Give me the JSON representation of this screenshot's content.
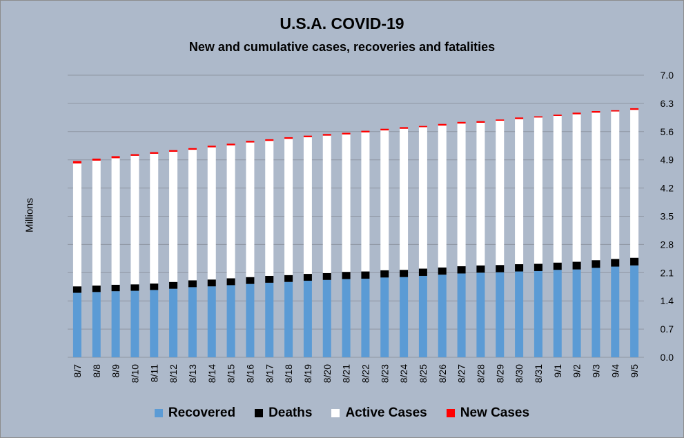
{
  "chart_data": {
    "type": "bar",
    "stacked": true,
    "title": "U.S.A. COVID-19",
    "subtitle": "New and cumulative cases, recoveries and fatalities",
    "ylabel": "Millions",
    "ylim": [
      0,
      7.0
    ],
    "yticks": [
      "0.0",
      "0.7",
      "1.4",
      "2.1",
      "2.8",
      "3.5",
      "4.2",
      "4.9",
      "5.6",
      "6.3",
      "7.0"
    ],
    "y_axis_position": "right",
    "grid": true,
    "legend_position": "bottom",
    "categories": [
      "8/7",
      "8/8",
      "8/9",
      "8/10",
      "8/11",
      "8/12",
      "8/13",
      "8/14",
      "8/15",
      "8/16",
      "8/17",
      "8/18",
      "8/19",
      "8/20",
      "8/21",
      "8/22",
      "8/23",
      "8/24",
      "8/25",
      "8/26",
      "8/27",
      "8/28",
      "8/29",
      "8/30",
      "8/31",
      "9/1",
      "9/2",
      "9/3",
      "9/4",
      "9/5"
    ],
    "series": [
      {
        "name": "Recovered",
        "color": "#5b9bd5",
        "values": [
          1.6,
          1.62,
          1.64,
          1.65,
          1.67,
          1.7,
          1.74,
          1.76,
          1.79,
          1.82,
          1.85,
          1.87,
          1.9,
          1.92,
          1.94,
          1.95,
          1.98,
          1.99,
          2.02,
          2.05,
          2.08,
          2.1,
          2.11,
          2.13,
          2.14,
          2.17,
          2.18,
          2.22,
          2.25,
          2.28
        ]
      },
      {
        "name": "Deaths",
        "color": "#000000",
        "values": [
          0.16,
          0.16,
          0.16,
          0.16,
          0.16,
          0.17,
          0.17,
          0.17,
          0.17,
          0.17,
          0.17,
          0.17,
          0.17,
          0.17,
          0.18,
          0.18,
          0.18,
          0.18,
          0.18,
          0.18,
          0.18,
          0.18,
          0.18,
          0.18,
          0.18,
          0.18,
          0.19,
          0.19,
          0.19,
          0.19
        ]
      },
      {
        "name": "Active Cases",
        "color": "#ffffff",
        "values": [
          3.05,
          3.1,
          3.14,
          3.19,
          3.22,
          3.23,
          3.24,
          3.28,
          3.3,
          3.34,
          3.35,
          3.38,
          3.39,
          3.41,
          3.41,
          3.45,
          3.47,
          3.5,
          3.51,
          3.52,
          3.54,
          3.54,
          3.58,
          3.6,
          3.63,
          3.64,
          3.66,
          3.66,
          3.66,
          3.67
        ]
      },
      {
        "name": "New Cases",
        "color": "#ff0000",
        "values": [
          0.06,
          0.05,
          0.05,
          0.04,
          0.04,
          0.04,
          0.04,
          0.04,
          0.04,
          0.04,
          0.04,
          0.04,
          0.04,
          0.04,
          0.04,
          0.04,
          0.04,
          0.04,
          0.03,
          0.04,
          0.04,
          0.04,
          0.03,
          0.04,
          0.03,
          0.03,
          0.04,
          0.04,
          0.03,
          0.04
        ]
      }
    ]
  }
}
